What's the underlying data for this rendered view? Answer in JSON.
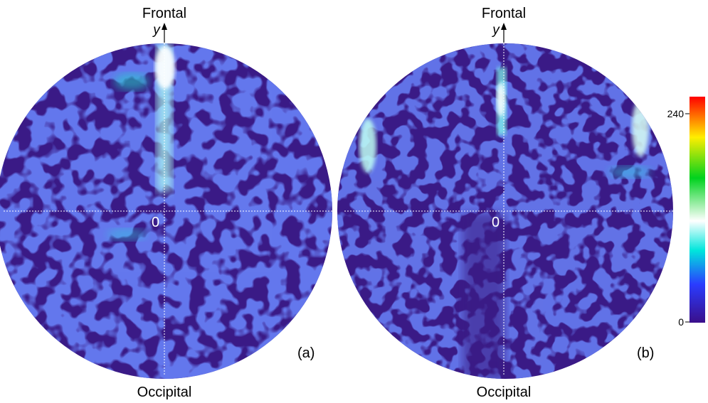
{
  "panels": [
    {
      "id": "a",
      "label_top": "Frontal",
      "label_bottom": "Occipital",
      "axis_y": "y",
      "origin": "0",
      "panel_label": "(a)"
    },
    {
      "id": "b",
      "label_top": "Frontal",
      "label_bottom": "Occipital",
      "axis_y": "y",
      "origin": "0",
      "panel_label": "(b)"
    }
  ],
  "colorbar": {
    "max_label": "240",
    "min_label": "0",
    "colors": [
      "#ff0000",
      "#ffee00",
      "#00d21e",
      "#ffffff",
      "#00e6dc",
      "#2a3cff",
      "#3a0f8a"
    ]
  },
  "colors": {
    "disc_base": "#3a1a86",
    "stripe_blue": "#2a3cff",
    "hot": "#aefff2",
    "crosshair": "#ffffff"
  }
}
